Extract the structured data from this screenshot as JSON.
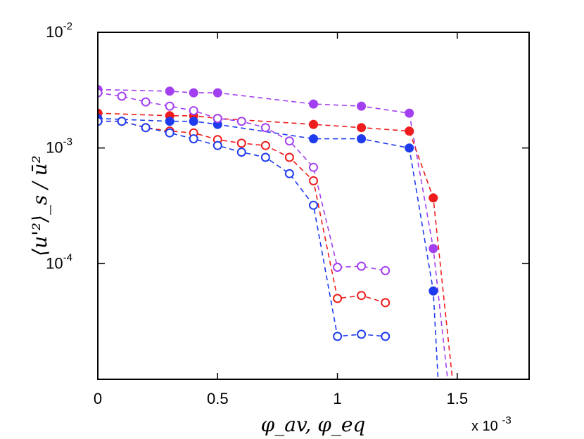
{
  "chart_data": {
    "type": "scatter",
    "title": "",
    "xlabel": "φ_av, φ_eq",
    "ylabel": "⟨u'²⟩_s / ū²",
    "x_multiplier": "x 10",
    "x_multiplier_exp": "-3",
    "xlim": [
      0,
      0.0018
    ],
    "ylim": [
      1e-05,
      0.01
    ],
    "yscale": "log",
    "xticks": [
      {
        "value": 0,
        "label": "0"
      },
      {
        "value": 0.0005,
        "label": "0.5"
      },
      {
        "value": 0.001,
        "label": "1"
      },
      {
        "value": 0.0015,
        "label": "1.5"
      }
    ],
    "yticks": [
      {
        "value": 0.01,
        "base": "10",
        "exp": "-2"
      },
      {
        "value": 0.001,
        "base": "10",
        "exp": "-3"
      },
      {
        "value": 0.0001,
        "base": "10",
        "exp": "-4"
      }
    ],
    "grid": false,
    "legend": "none",
    "series": [
      {
        "color": "#a23ff0",
        "marker": "filled",
        "x": [
          0,
          0.0003,
          0.0004,
          0.0005,
          0.0009,
          0.0011,
          0.0013,
          0.0014,
          0.00146
        ],
        "y": [
          0.0032,
          0.0031,
          0.003,
          0.003,
          0.0024,
          0.0023,
          0.002,
          0.000135,
          1e-05
        ],
        "marker_points": 8
      },
      {
        "color": "#ee1c1c",
        "marker": "filled",
        "x": [
          0,
          0.0003,
          0.0004,
          0.0005,
          0.0009,
          0.0011,
          0.0013,
          0.0014,
          0.00148
        ],
        "y": [
          0.002,
          0.0019,
          0.0019,
          0.0018,
          0.0016,
          0.0015,
          0.0014,
          0.00037,
          1e-05
        ],
        "marker_points": 8
      },
      {
        "color": "#1f3bee",
        "marker": "filled",
        "x": [
          0,
          0.0003,
          0.0004,
          0.0005,
          0.0009,
          0.0011,
          0.0013,
          0.0014,
          0.00142
        ],
        "y": [
          0.0018,
          0.0017,
          0.0017,
          0.0016,
          0.0012,
          0.0012,
          0.001,
          5.8e-05,
          1e-05
        ],
        "marker_points": 8
      },
      {
        "color": "#a23ff0",
        "marker": "open",
        "x": [
          0,
          0.0001,
          0.0002,
          0.0003,
          0.0004,
          0.0005,
          0.0006,
          0.0007,
          0.0008,
          0.0009,
          0.001,
          0.0011,
          0.0012
        ],
        "y": [
          0.003,
          0.0028,
          0.0025,
          0.0023,
          0.0021,
          0.0018,
          0.0017,
          0.0015,
          0.00115,
          0.00068,
          9.3e-05,
          9.5e-05,
          8.7e-05
        ],
        "marker_points": 13
      },
      {
        "color": "#ee1c1c",
        "marker": "open",
        "x": [
          0,
          0.0001,
          0.0002,
          0.0003,
          0.0004,
          0.0005,
          0.0006,
          0.0007,
          0.0008,
          0.0009,
          0.001,
          0.0011,
          0.0012
        ],
        "y": [
          0.0017,
          0.0017,
          0.0015,
          0.0014,
          0.00135,
          0.00118,
          0.0011,
          0.00105,
          0.00083,
          0.00052,
          5e-05,
          5.3e-05,
          4.6e-05
        ],
        "marker_points": 13
      },
      {
        "color": "#1f3bee",
        "marker": "open",
        "x": [
          0,
          0.0001,
          0.0002,
          0.0003,
          0.0004,
          0.0005,
          0.0006,
          0.0007,
          0.0008,
          0.0009,
          0.001,
          0.0011,
          0.0012
        ],
        "y": [
          0.0017,
          0.0017,
          0.0015,
          0.00135,
          0.0012,
          0.00105,
          0.00092,
          0.00083,
          0.0006,
          0.00032,
          2.35e-05,
          2.45e-05,
          2.35e-05
        ],
        "marker_points": 13
      }
    ]
  }
}
